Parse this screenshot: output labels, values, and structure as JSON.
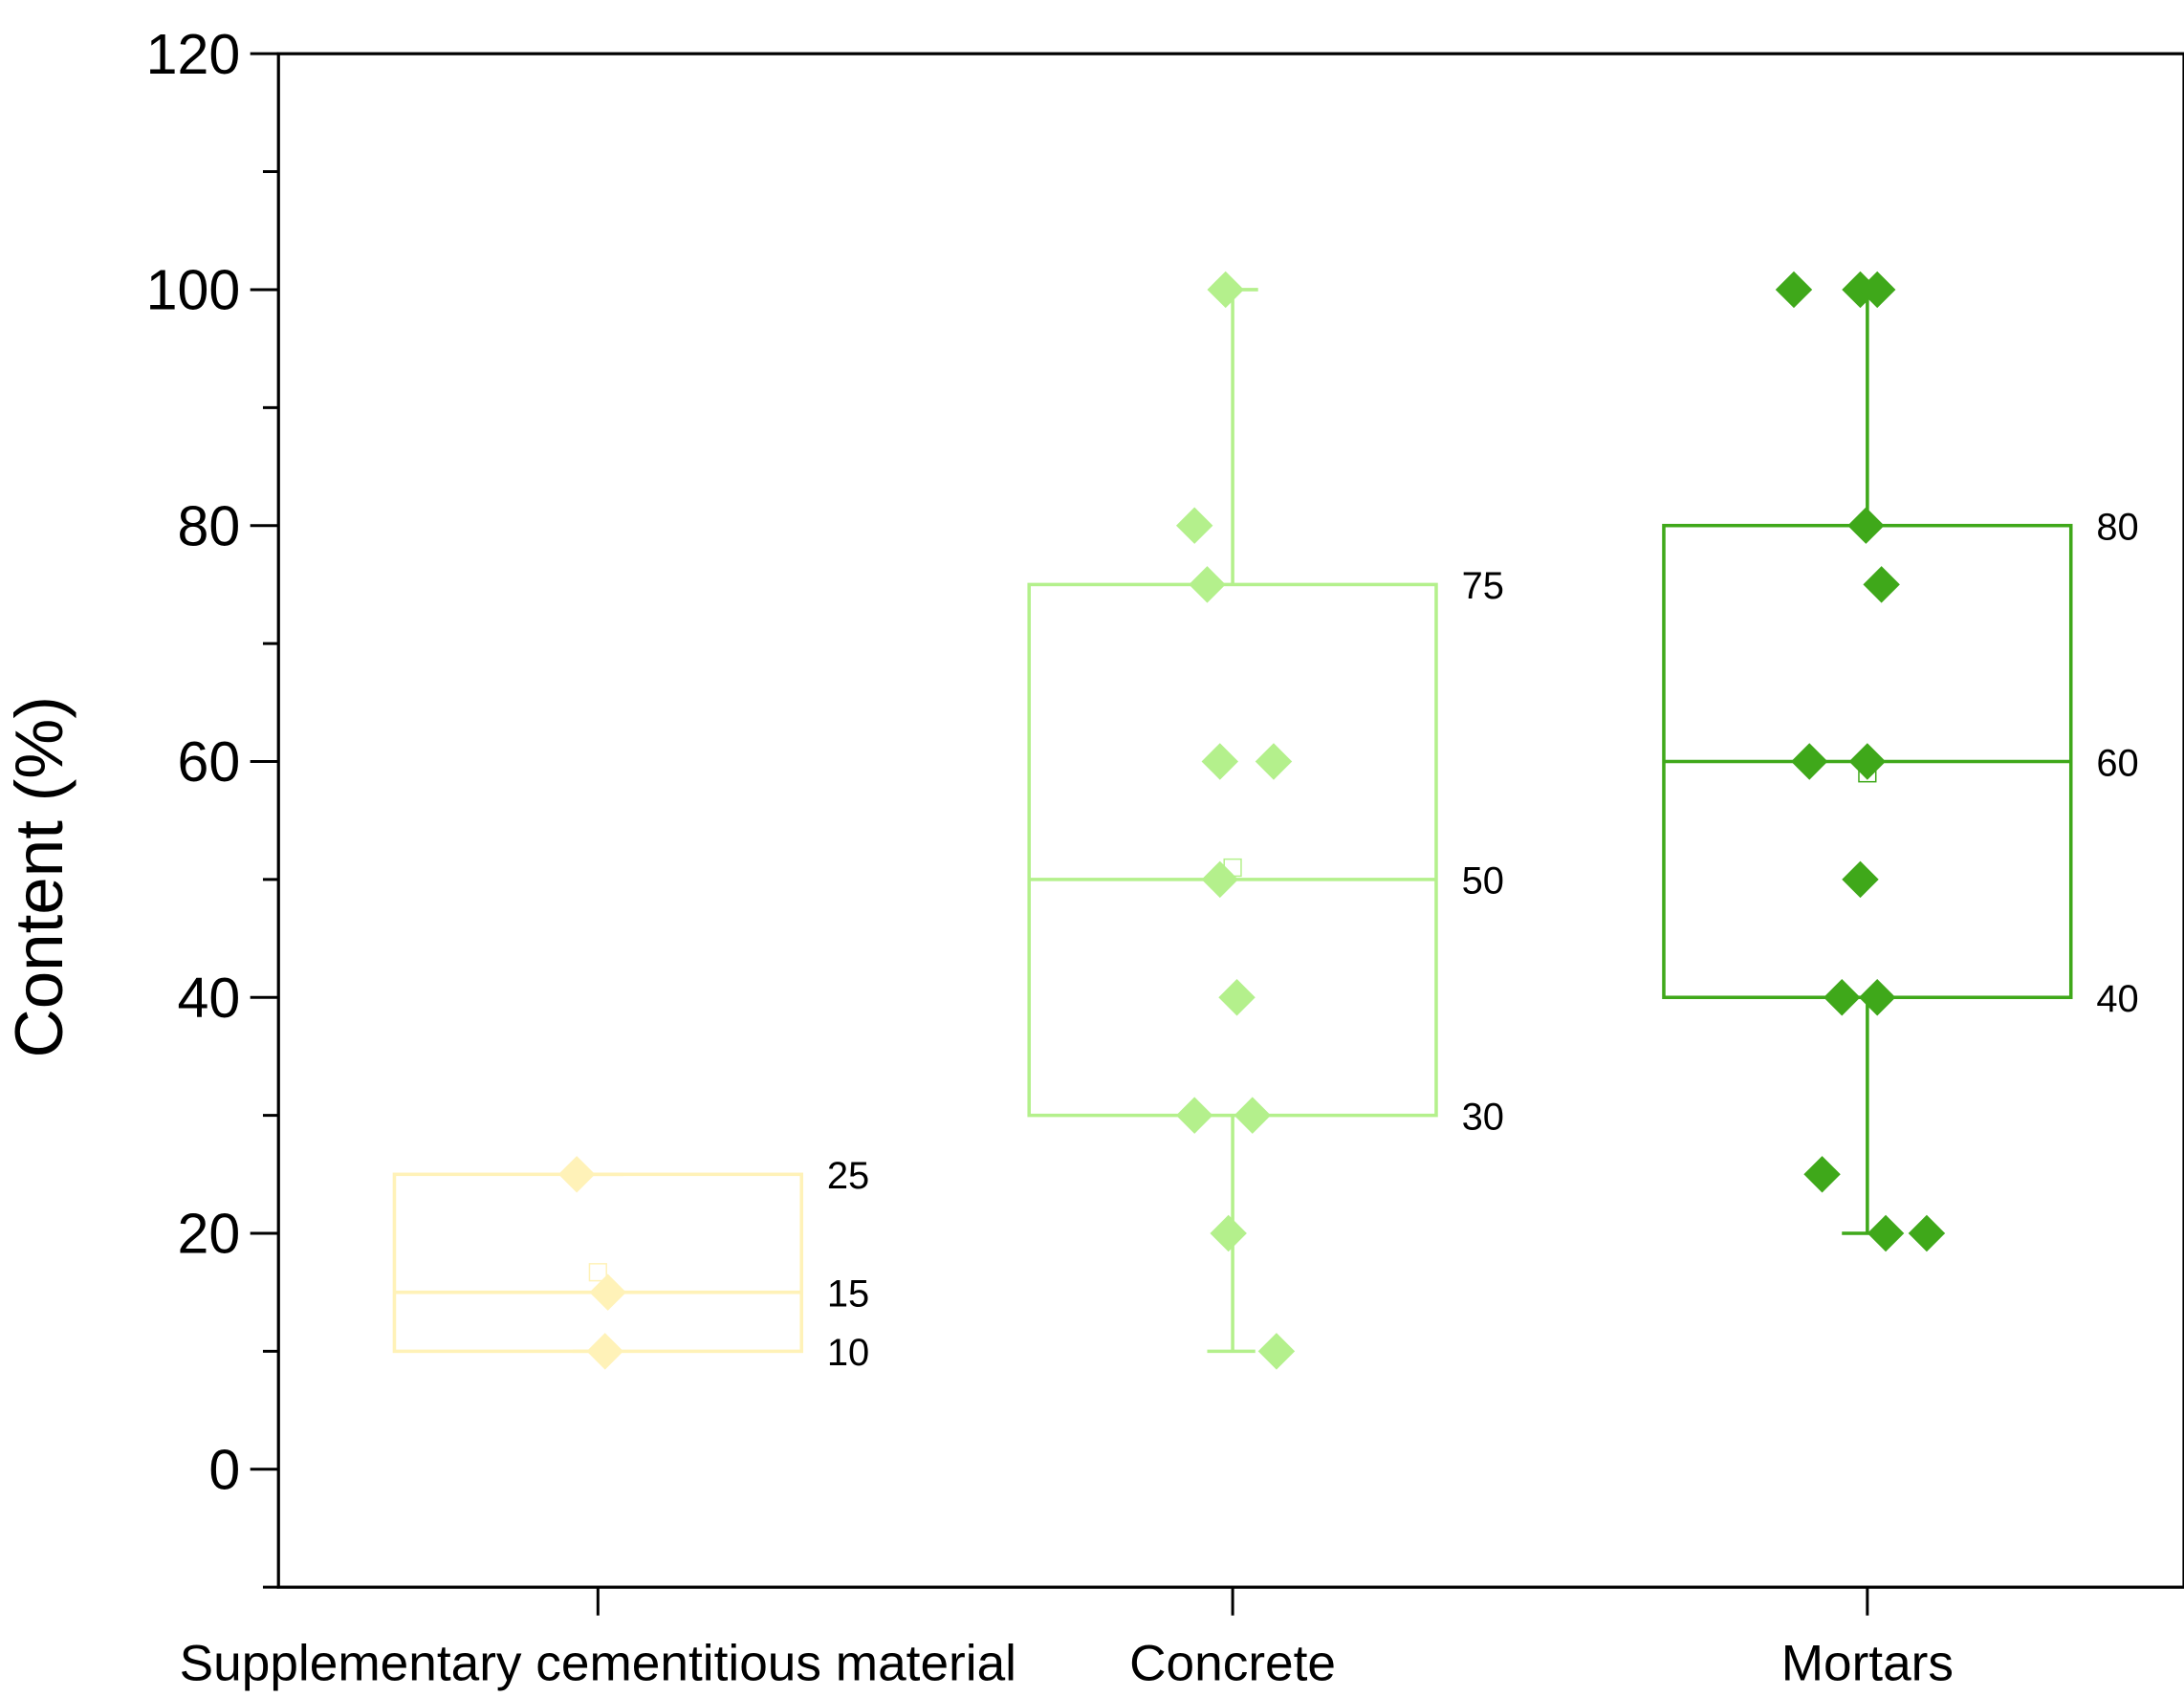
{
  "chart_data": {
    "type": "box",
    "title": "",
    "xlabel": "",
    "ylabel": "Content (%)",
    "ylim": [
      -10,
      120
    ],
    "yticks": [
      0,
      20,
      40,
      60,
      80,
      100,
      120
    ],
    "grid": false,
    "categories": [
      "Supplementary cementitious material",
      "Concrete",
      "Mortars"
    ],
    "series": [
      {
        "name": "Supplementary cementitious material",
        "color": "#fff2b8",
        "q1": 10,
        "median": 15,
        "q3": 25,
        "whisker_low": 10,
        "whisker_high": 25,
        "mean": 16.7,
        "labels": {
          "q3": "25",
          "median": "15",
          "q1": "10"
        },
        "points": [
          25,
          15,
          10
        ]
      },
      {
        "name": "Concrete",
        "color": "#b4f08c",
        "q1": 30,
        "median": 50,
        "q3": 75,
        "whisker_low": 10,
        "whisker_high": 100,
        "mean": 51,
        "labels": {
          "q3": "75",
          "median": "50",
          "q1": "30"
        },
        "points": [
          100,
          80,
          75,
          60,
          60,
          50,
          40,
          30,
          30,
          20,
          10
        ]
      },
      {
        "name": "Mortars",
        "color": "#3fa81a",
        "q1": 40,
        "median": 60,
        "q3": 80,
        "whisker_low": 20,
        "whisker_high": 100,
        "mean": 59,
        "labels": {
          "q3": "80",
          "median": "60",
          "q1": "40"
        },
        "points": [
          100,
          100,
          100,
          80,
          75,
          60,
          60,
          50,
          40,
          40,
          25,
          20,
          20
        ]
      }
    ]
  }
}
